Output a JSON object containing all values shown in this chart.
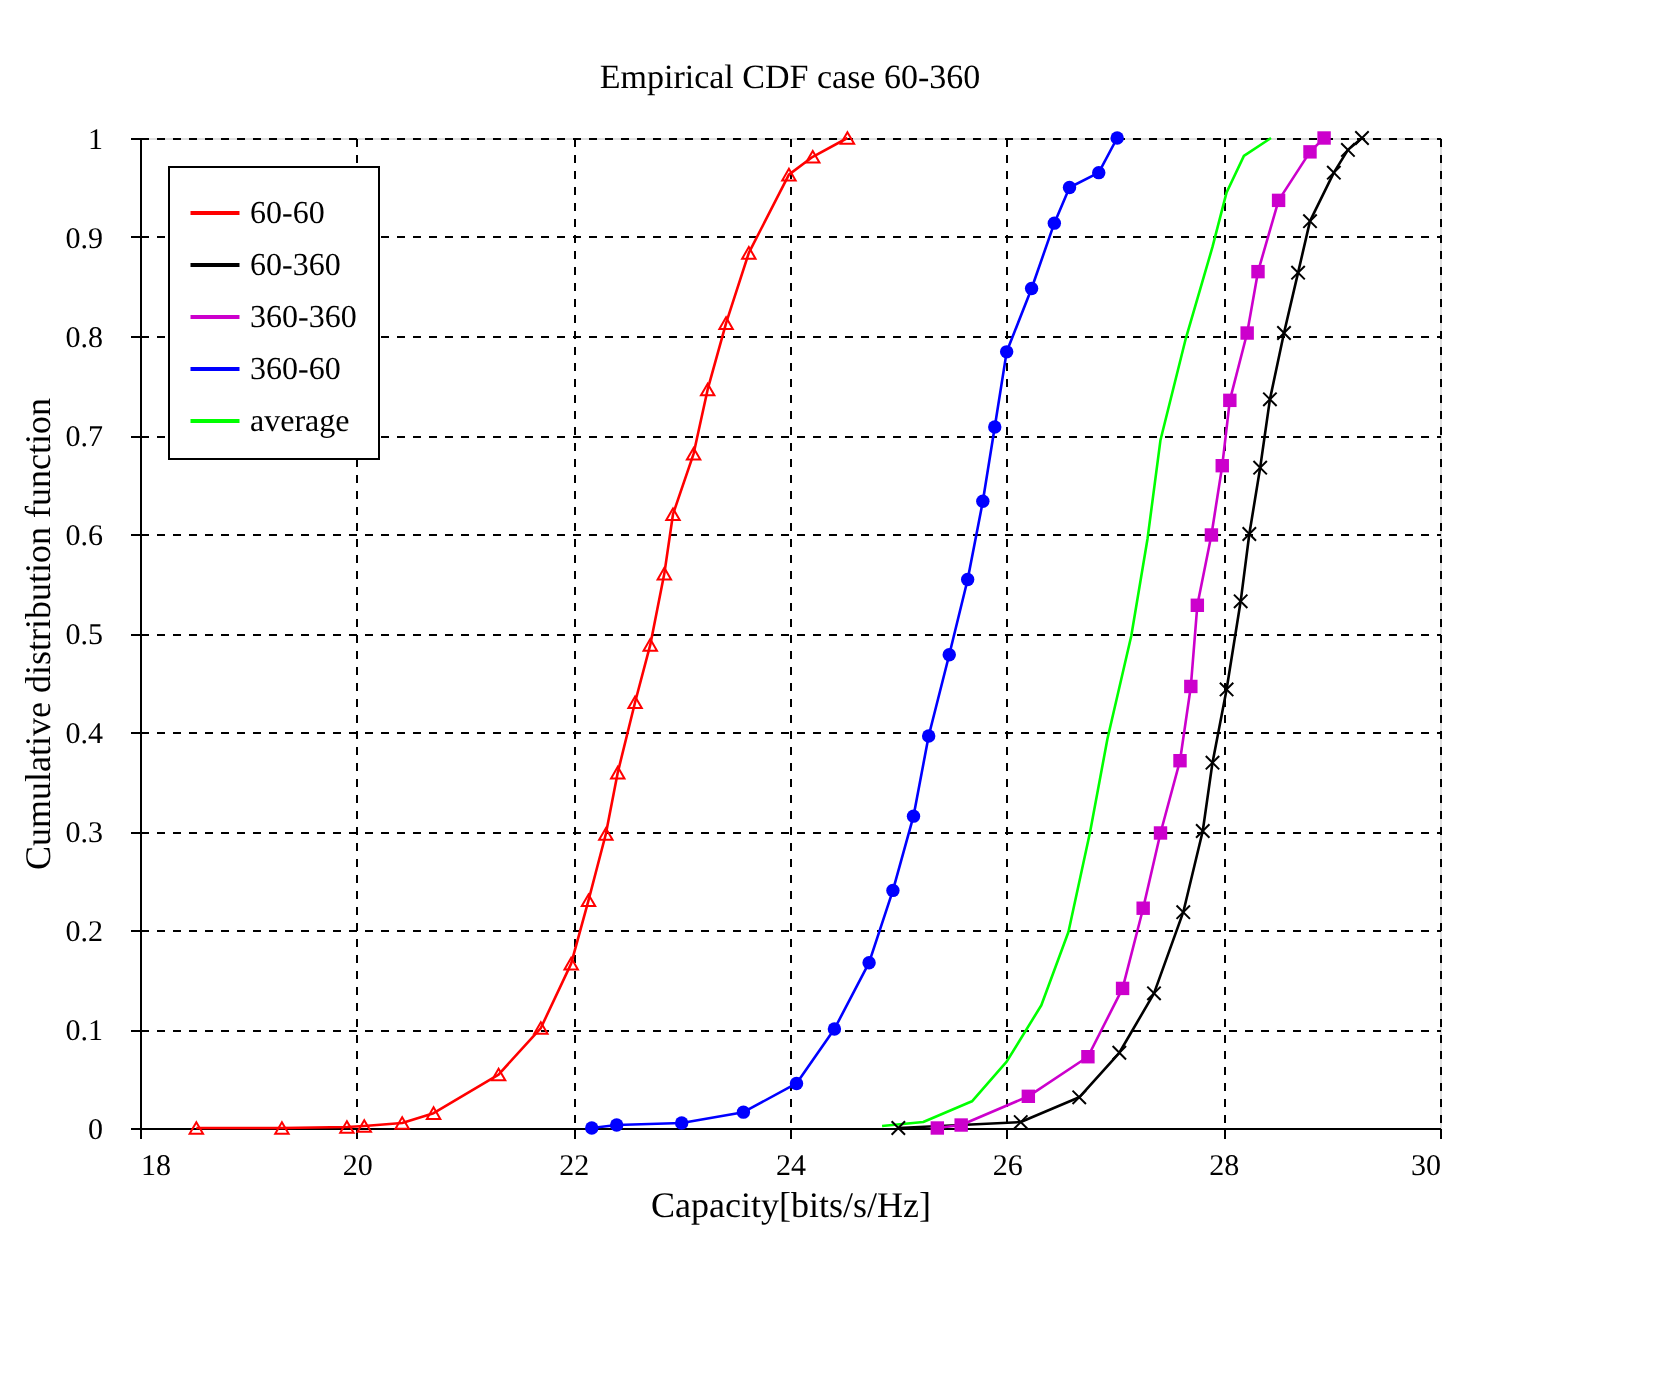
{
  "chart_data": {
    "type": "line",
    "title": "Empirical CDF case 60-360",
    "xlabel": "Capacity[bits/s/Hz]",
    "ylabel": "Cumulative distribution function",
    "xlim": [
      18,
      30
    ],
    "ylim": [
      0,
      1
    ],
    "xticks": [
      18,
      20,
      22,
      24,
      26,
      28,
      30
    ],
    "yticks": [
      0,
      0.1,
      0.2,
      0.3,
      0.4,
      0.5,
      0.6,
      0.7,
      0.8,
      0.9,
      1
    ],
    "grid": true,
    "legend": "top left",
    "line_style": "solid",
    "series": [
      {
        "name": "60-60",
        "color": "#ff0000",
        "marker": "triangle",
        "x": [
          18.52,
          19.31,
          19.91,
          20.07,
          20.42,
          20.71,
          21.31,
          21.7,
          21.98,
          22.14,
          22.3,
          22.41,
          22.57,
          22.71,
          22.84,
          22.92,
          23.11,
          23.24,
          23.41,
          23.62,
          23.99,
          24.21,
          24.53
        ],
        "values": [
          0,
          0,
          0.001,
          0.002,
          0.005,
          0.015,
          0.054,
          0.101,
          0.166,
          0.23,
          0.297,
          0.359,
          0.43,
          0.488,
          0.56,
          0.62,
          0.681,
          0.746,
          0.813,
          0.884,
          0.963,
          0.981,
          1
        ]
      },
      {
        "name": "60-360",
        "color": "#000000",
        "marker": "cross",
        "x": [
          25,
          26.13,
          26.67,
          27.04,
          27.36,
          27.63,
          27.81,
          27.9,
          28.03,
          28.16,
          28.24,
          28.34,
          28.43,
          28.56,
          28.69,
          28.8,
          29.02,
          29.15,
          29.28
        ],
        "values": [
          0,
          0.006,
          0.031,
          0.076,
          0.136,
          0.218,
          0.3,
          0.369,
          0.443,
          0.532,
          0.6,
          0.667,
          0.736,
          0.803,
          0.864,
          0.916,
          0.965,
          0.988,
          1
        ]
      },
      {
        "name": "360-360",
        "color": "#cc00cc",
        "marker": "square",
        "x": [
          25.36,
          25.58,
          26.2,
          26.75,
          27.07,
          27.26,
          27.42,
          27.6,
          27.7,
          27.76,
          27.89,
          27.99,
          28.06,
          28.22,
          28.32,
          28.51,
          28.8,
          28.93
        ],
        "values": [
          0,
          0.003,
          0.032,
          0.072,
          0.141,
          0.222,
          0.298,
          0.371,
          0.446,
          0.528,
          0.599,
          0.669,
          0.735,
          0.803,
          0.865,
          0.937,
          0.986,
          1
        ]
      },
      {
        "name": "360-60",
        "color": "#0000ff",
        "marker": "circle",
        "x": [
          22.17,
          22.4,
          23.0,
          23.57,
          24.06,
          24.41,
          24.73,
          24.95,
          25.14,
          25.28,
          25.47,
          25.64,
          25.78,
          25.89,
          26.0,
          26.23,
          26.44,
          26.58,
          26.85,
          27.02
        ],
        "values": [
          0,
          0.003,
          0.005,
          0.016,
          0.045,
          0.1,
          0.167,
          0.24,
          0.315,
          0.396,
          0.478,
          0.554,
          0.633,
          0.708,
          0.784,
          0.848,
          0.914,
          0.95,
          0.965,
          1
        ]
      },
      {
        "name": "average",
        "color": "#00ff00",
        "marker": "none",
        "x": [
          24.85,
          25.23,
          25.68,
          26.0,
          26.32,
          26.57,
          26.77,
          26.93,
          27.15,
          27.3,
          27.42,
          27.65,
          27.9,
          28.03,
          28.19,
          28.44
        ],
        "values": [
          0.002,
          0.006,
          0.027,
          0.067,
          0.124,
          0.198,
          0.299,
          0.393,
          0.497,
          0.595,
          0.695,
          0.796,
          0.89,
          0.945,
          0.982,
          1
        ]
      }
    ]
  }
}
